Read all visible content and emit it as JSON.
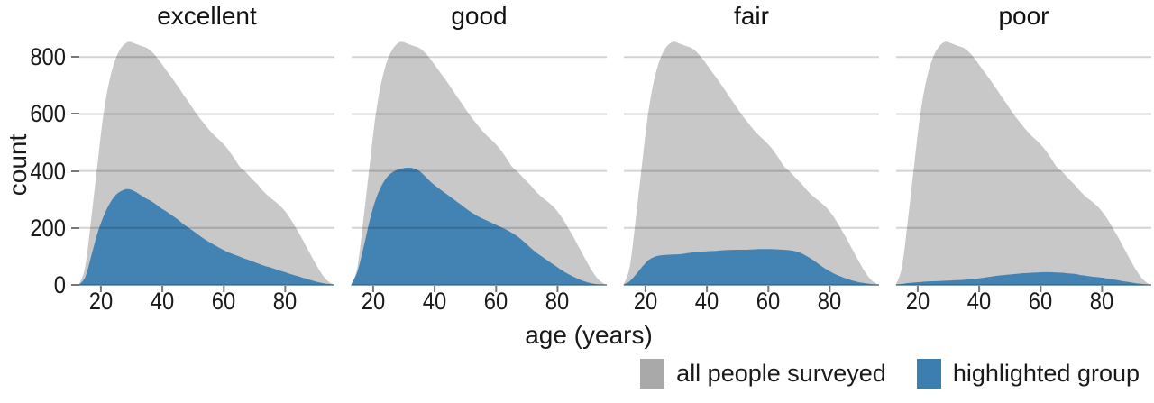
{
  "chart_data": {
    "type": "area",
    "title": "",
    "xlabel": "age (years)",
    "ylabel": "count",
    "xlim": [
      13,
      96
    ],
    "ylim": [
      0,
      880
    ],
    "x_ticks": [
      20,
      40,
      60,
      80
    ],
    "y_ticks": [
      0,
      200,
      400,
      600,
      800
    ],
    "grid": "horizontal",
    "legend_position": "bottom-right",
    "colors": {
      "all_people_fill": "#c8c8c8",
      "highlight_fill": "#4383b4",
      "gridline": "rgba(0,0,0,0.17)",
      "tick": "#787878",
      "text": "#1a1a1a"
    },
    "ages": [
      13,
      15,
      17,
      19,
      21,
      23,
      25,
      27,
      29,
      31,
      33,
      35,
      37,
      39,
      41,
      43,
      45,
      47,
      49,
      51,
      53,
      55,
      57,
      59,
      61,
      63,
      65,
      67,
      69,
      71,
      73,
      75,
      77,
      79,
      81,
      83,
      85,
      87,
      89,
      91,
      93,
      95,
      96
    ],
    "all_people": [
      0,
      60,
      230,
      420,
      600,
      720,
      795,
      835,
      852,
      846,
      838,
      830,
      812,
      785,
      755,
      726,
      695,
      663,
      632,
      600,
      572,
      545,
      522,
      502,
      478,
      448,
      415,
      395,
      372,
      350,
      325,
      305,
      288,
      268,
      240,
      205,
      168,
      128,
      88,
      50,
      20,
      3,
      0
    ],
    "facets": [
      {
        "label": "excellent",
        "highlighted": [
          0,
          25,
          100,
          180,
          240,
          285,
          315,
          330,
          335,
          327,
          313,
          300,
          288,
          272,
          258,
          243,
          228,
          210,
          196,
          180,
          164,
          150,
          138,
          126,
          115,
          106,
          98,
          90,
          82,
          74,
          66,
          60,
          53,
          46,
          39,
          32,
          26,
          19,
          13,
          7,
          3,
          1,
          0
        ]
      },
      {
        "label": "good",
        "highlighted": [
          0,
          45,
          130,
          225,
          300,
          350,
          382,
          398,
          406,
          410,
          408,
          398,
          378,
          357,
          340,
          324,
          308,
          292,
          276,
          260,
          246,
          234,
          224,
          214,
          204,
          194,
          182,
          168,
          150,
          130,
          112,
          97,
          82,
          67,
          52,
          39,
          28,
          18,
          10,
          4,
          1,
          0,
          0
        ]
      },
      {
        "label": "fair",
        "highlighted": [
          0,
          12,
          35,
          62,
          85,
          97,
          102,
          104,
          105,
          106,
          109,
          112,
          114,
          116,
          117,
          118,
          120,
          121,
          122,
          122,
          122,
          123,
          124,
          124,
          124,
          123,
          122,
          120,
          116,
          108,
          96,
          82,
          66,
          52,
          40,
          30,
          22,
          15,
          9,
          5,
          2,
          0,
          0
        ]
      },
      {
        "label": "poor",
        "highlighted": [
          0,
          2,
          5,
          7,
          9,
          10,
          11,
          12,
          13,
          14,
          15,
          16,
          18,
          20,
          23,
          26,
          29,
          32,
          34,
          36,
          38,
          40,
          41,
          42,
          43,
          43,
          42,
          41,
          39,
          37,
          33,
          30,
          27,
          25,
          22,
          19,
          15,
          11,
          8,
          4,
          2,
          0,
          0
        ]
      }
    ],
    "legend": [
      {
        "label": "all people surveyed",
        "color": "#c8c8c8",
        "swatch_color": "#a9a9a9"
      },
      {
        "label": "highlighted group",
        "color": "#4383b4",
        "swatch_color": "#3d7eb0"
      }
    ]
  }
}
